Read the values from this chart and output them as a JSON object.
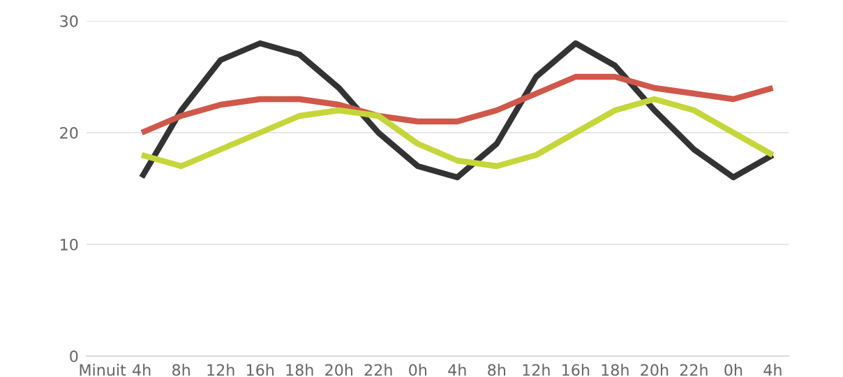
{
  "chart_data": {
    "type": "line",
    "categories": [
      "Minuit",
      "4h",
      "8h",
      "12h",
      "16h",
      "18h",
      "20h",
      "22h",
      "0h",
      "4h",
      "8h",
      "12h",
      "16h",
      "18h",
      "20h",
      "22h",
      "0h",
      "4h"
    ],
    "series": [
      {
        "color": "#333333",
        "values": [
          null,
          16,
          22,
          26.5,
          28,
          27,
          24,
          20,
          17,
          16,
          19,
          25,
          28,
          26,
          22,
          18.5,
          16,
          18
        ]
      },
      {
        "color": "#d0584a",
        "values": [
          null,
          20,
          21.5,
          22.5,
          23,
          23,
          22.5,
          21.5,
          21,
          21,
          22,
          23.5,
          25,
          25,
          24,
          23.5,
          23,
          24
        ]
      },
      {
        "color": "#c5d63a",
        "values": [
          null,
          18,
          17,
          18.5,
          20,
          21.5,
          22,
          21.5,
          19,
          17.5,
          17,
          18,
          20,
          22,
          23,
          22,
          20,
          18
        ]
      }
    ],
    "ylim": [
      0,
      30
    ],
    "yticks": [
      0,
      10,
      20,
      30
    ],
    "grid": "y",
    "line_style": "solid",
    "marker": "none"
  }
}
